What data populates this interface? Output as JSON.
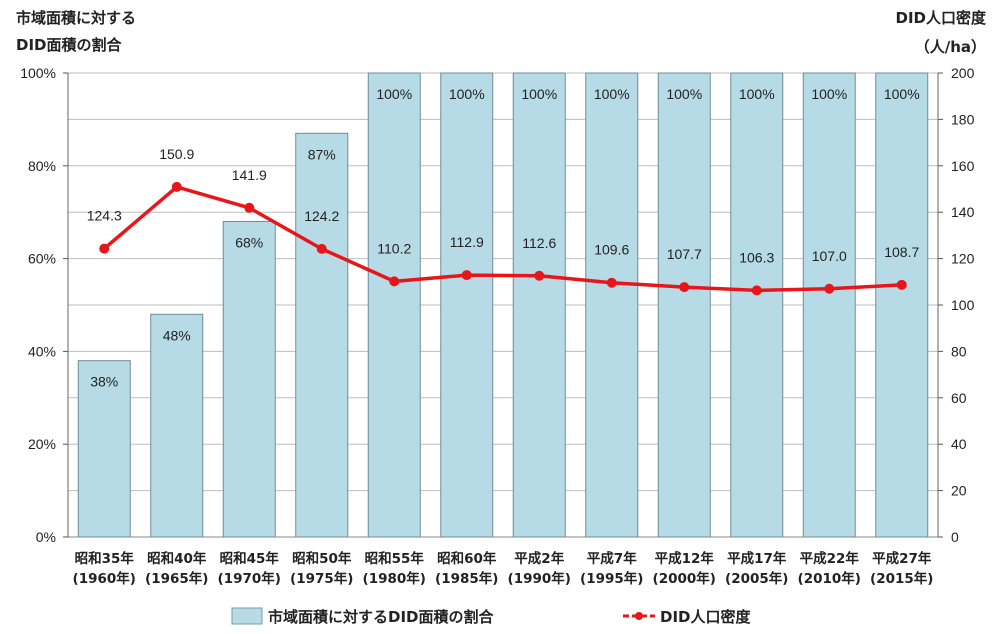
{
  "chart_data": {
    "type": "bar+line",
    "left_axis_title": [
      "市域面積に対する",
      "DID面積の割合"
    ],
    "right_axis_title": [
      "DID人口密度",
      "（人/ha）"
    ],
    "categories": [
      [
        "昭和35年",
        "(1960年)"
      ],
      [
        "昭和40年",
        "(1965年)"
      ],
      [
        "昭和45年",
        "(1970年)"
      ],
      [
        "昭和50年",
        "(1975年)"
      ],
      [
        "昭和55年",
        "(1980年)"
      ],
      [
        "昭和60年",
        "(1985年)"
      ],
      [
        "平成2年",
        "(1990年)"
      ],
      [
        "平成7年",
        "(1995年)"
      ],
      [
        "平成12年",
        "(2000年)"
      ],
      [
        "平成17年",
        "(2005年)"
      ],
      [
        "平成22年",
        "(2010年)"
      ],
      [
        "平成27年",
        "(2015年)"
      ]
    ],
    "series": [
      {
        "name": "市域面積に対するDID面積の割合",
        "type": "bar",
        "axis": "left",
        "color": "#b7dbe6",
        "values": [
          38,
          48,
          68,
          87,
          100,
          100,
          100,
          100,
          100,
          100,
          100,
          100
        ],
        "labels": [
          "38%",
          "48%",
          "68%",
          "87%",
          "100%",
          "100%",
          "100%",
          "100%",
          "100%",
          "100%",
          "100%",
          "100%"
        ]
      },
      {
        "name": "DID人口密度",
        "type": "line",
        "axis": "right",
        "color": "#e8161b",
        "values": [
          124.3,
          150.9,
          141.9,
          124.2,
          110.2,
          112.9,
          112.6,
          109.6,
          107.7,
          106.3,
          107.0,
          108.7
        ],
        "labels": [
          "124.3",
          "150.9",
          "141.9",
          "124.2",
          "110.2",
          "112.9",
          "112.6",
          "109.6",
          "107.7",
          "106.3",
          "107.0",
          "108.7"
        ]
      }
    ],
    "left_axis": {
      "min": 0,
      "max": 100,
      "ticks": [
        "0%",
        "20%",
        "40%",
        "60%",
        "80%",
        "100%"
      ]
    },
    "right_axis": {
      "min": 0,
      "max": 200,
      "ticks": [
        "0",
        "20",
        "40",
        "60",
        "80",
        "100",
        "120",
        "140",
        "160",
        "180",
        "200"
      ]
    },
    "grid": "horizontal",
    "legend_position": "bottom"
  }
}
